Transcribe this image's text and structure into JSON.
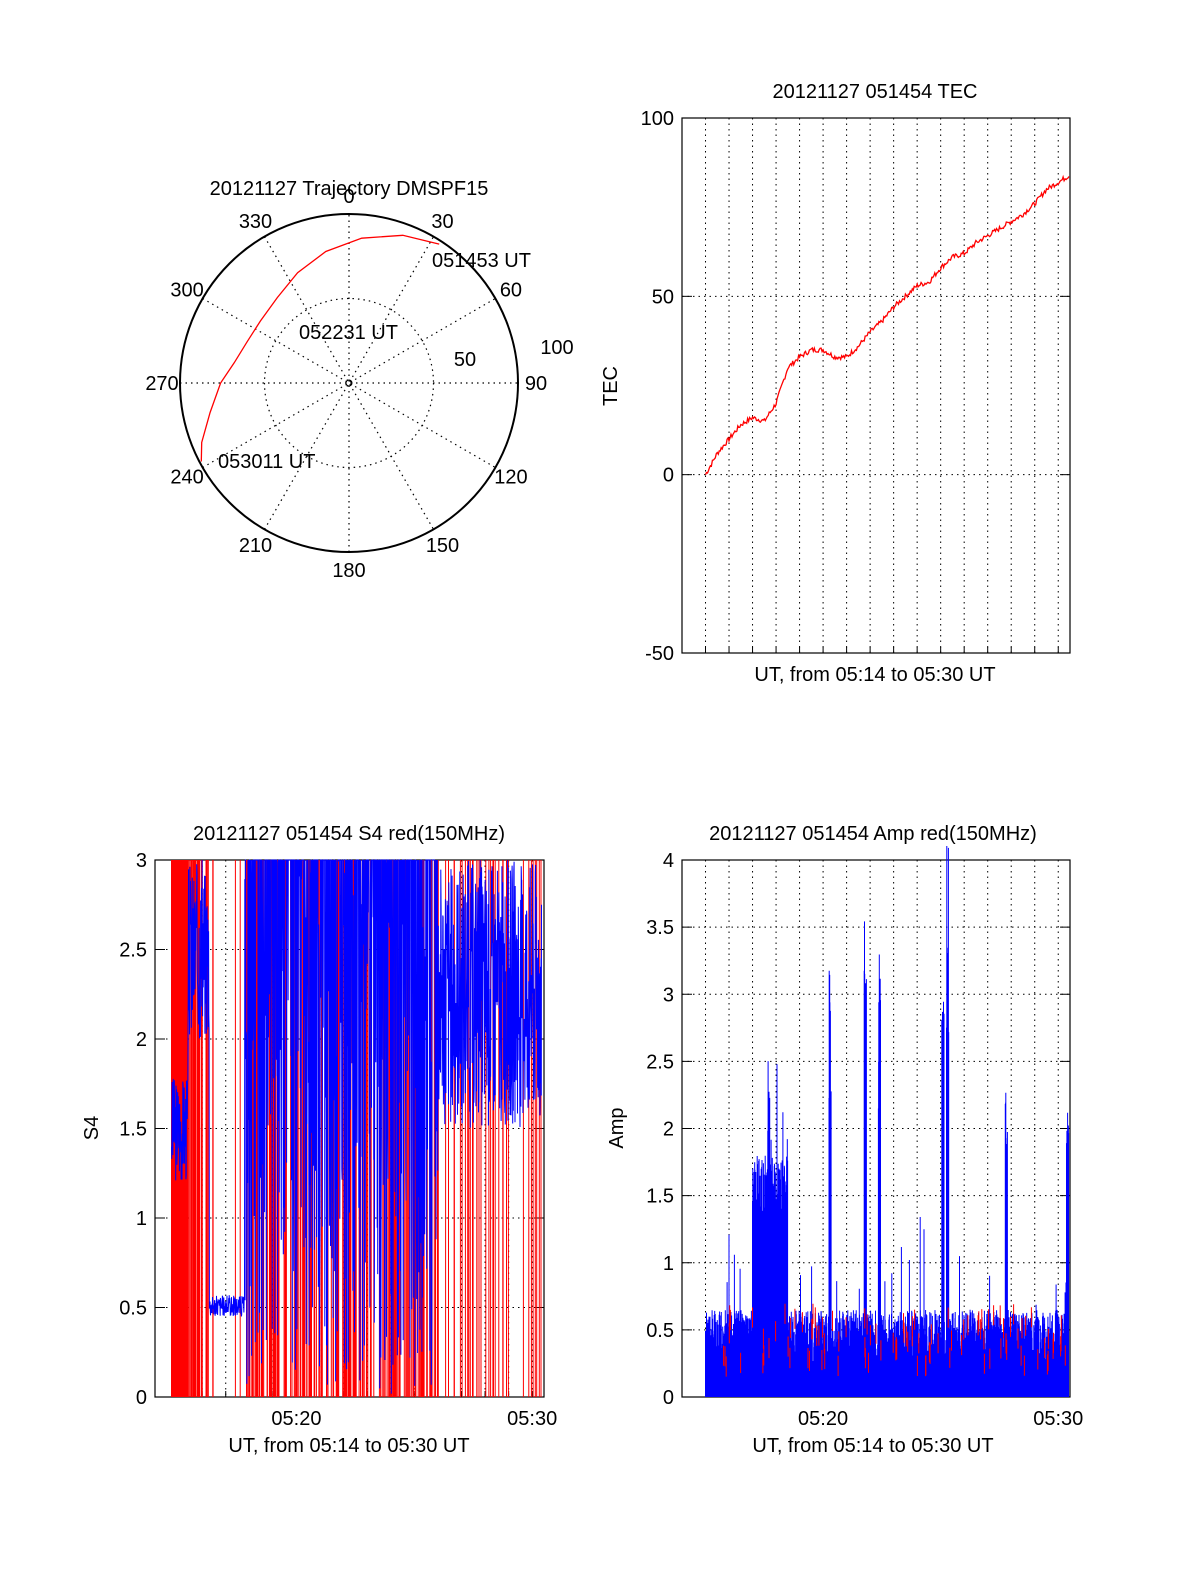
{
  "colors": {
    "primary_series": "#ff0000",
    "secondary_series": "#0000ff",
    "axis": "#000000",
    "grid": "#000000"
  },
  "chart_data": [
    {
      "type": "polar",
      "title": "20121127 Trajectory DMSPF15",
      "angle_labels": [
        "0",
        "30",
        "60",
        "90",
        "120",
        "150",
        "180",
        "210",
        "240",
        "270",
        "300",
        "330"
      ],
      "radial_labels": [
        "50",
        "100"
      ],
      "point_labels": [
        "051453 UT",
        "052231 UT",
        "053011 UT"
      ],
      "trajectory": {
        "azimuth_deg": [
          33,
          20,
          5,
          -10,
          -25,
          -40,
          -55,
          -68,
          -80,
          -90,
          -102,
          -112,
          -118
        ],
        "radius": [
          98,
          93,
          86,
          79,
          72,
          66,
          64,
          65,
          69,
          76,
          84,
          94,
          99
        ]
      }
    },
    {
      "type": "line",
      "title": "20121127 051454 TEC",
      "xlabel": "UT, from 05:14 to 05:30 UT",
      "ylabel": "TEC",
      "ylim": [
        -50,
        100
      ],
      "yticks": [
        "-50",
        "0",
        "50",
        "100"
      ],
      "xlim_minutes": [
        14,
        30.5
      ],
      "grid": true,
      "series": [
        {
          "x": [
            15,
            15.5,
            16,
            16.5,
            17,
            17.5,
            18,
            18.5,
            19,
            19.5,
            20,
            20.5,
            21,
            21.5,
            22,
            22.5,
            23,
            23.5,
            24,
            24.5,
            25,
            25.5,
            26,
            26.5,
            27,
            27.5,
            28,
            28.5,
            29,
            29.5,
            30,
            30.5
          ],
          "y": [
            0,
            6,
            10,
            14,
            16,
            15,
            20,
            30,
            33,
            35,
            35,
            33,
            33,
            36,
            40,
            43,
            47,
            50,
            53,
            54,
            58,
            61,
            62,
            65,
            67,
            69,
            71,
            73,
            76,
            80,
            82,
            84
          ]
        }
      ]
    },
    {
      "type": "line",
      "title": "20121127 051454 S4 red(150MHz)",
      "xlabel": "UT, from 05:14 to 05:30 UT",
      "ylabel": "S4",
      "ylim": [
        0,
        3
      ],
      "yticks": [
        "0",
        "0.5",
        "1",
        "1.5",
        "2",
        "2.5",
        "3"
      ],
      "xticks": [
        "05:20",
        "05:30"
      ],
      "xlim_minutes": [
        14,
        30.5
      ],
      "grid": true
    },
    {
      "type": "line",
      "title": "20121127 051454 Amp red(150MHz)",
      "xlabel": "UT, from 05:14 to 05:30 UT",
      "ylabel": "Amp",
      "ylim": [
        0,
        4
      ],
      "yticks": [
        "0",
        "0.5",
        "1",
        "1.5",
        "2",
        "2.5",
        "3",
        "3.5",
        "4"
      ],
      "xticks": [
        "05:20",
        "05:30"
      ],
      "xlim_minutes": [
        14,
        30.5
      ],
      "grid": true
    }
  ]
}
